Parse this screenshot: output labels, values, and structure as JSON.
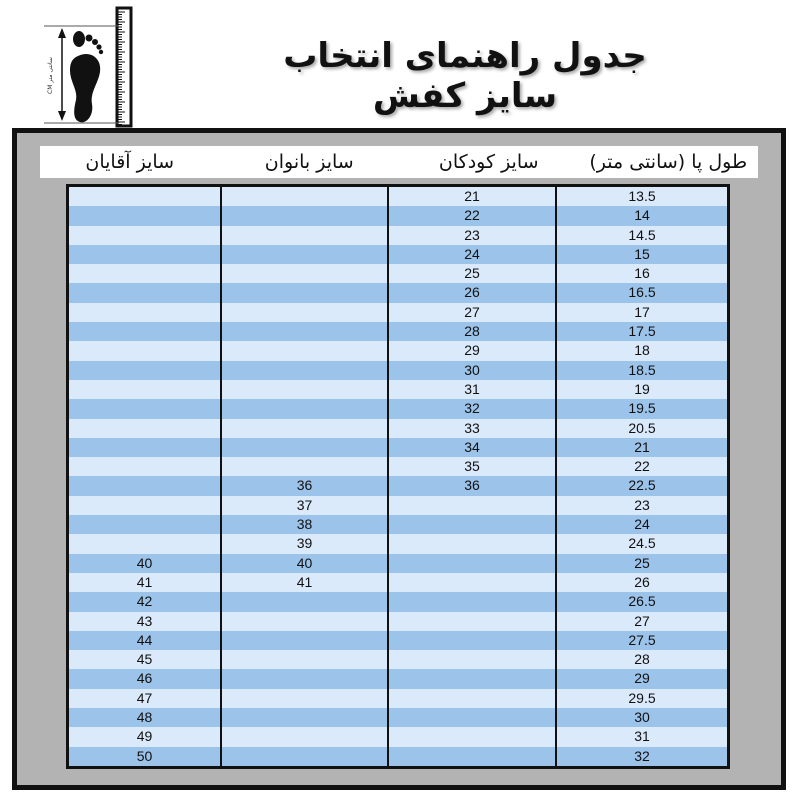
{
  "logo": {
    "icon": "foot-ruler-icon",
    "label": "CM سانتی متر"
  },
  "title": "جدول راهنمای انتخاب سایز کفش",
  "colors": {
    "row_light": "#dbeafb",
    "row_dark": "#9cc3ea",
    "frame": "#b3b3b3",
    "border": "#111111"
  },
  "table": {
    "headers": [
      "سایز آقایان",
      "سایز بانوان",
      "سایز کودکان",
      "طول پا (سانتی متر)"
    ],
    "rows": [
      [
        "",
        "",
        "21",
        "13.5"
      ],
      [
        "",
        "",
        "22",
        "14"
      ],
      [
        "",
        "",
        "23",
        "14.5"
      ],
      [
        "",
        "",
        "24",
        "15"
      ],
      [
        "",
        "",
        "25",
        "16"
      ],
      [
        "",
        "",
        "26",
        "16.5"
      ],
      [
        "",
        "",
        "27",
        "17"
      ],
      [
        "",
        "",
        "28",
        "17.5"
      ],
      [
        "",
        "",
        "29",
        "18"
      ],
      [
        "",
        "",
        "30",
        "18.5"
      ],
      [
        "",
        "",
        "31",
        "19"
      ],
      [
        "",
        "",
        "32",
        "19.5"
      ],
      [
        "",
        "",
        "33",
        "20.5"
      ],
      [
        "",
        "",
        "34",
        "21"
      ],
      [
        "",
        "",
        "35",
        "22"
      ],
      [
        "",
        "36",
        "36",
        "22.5"
      ],
      [
        "",
        "37",
        "",
        "23"
      ],
      [
        "",
        "38",
        "",
        "24"
      ],
      [
        "",
        "39",
        "",
        "24.5"
      ],
      [
        "40",
        "40",
        "",
        "25"
      ],
      [
        "41",
        "41",
        "",
        "26"
      ],
      [
        "42",
        "",
        "",
        "26.5"
      ],
      [
        "43",
        "",
        "",
        "27"
      ],
      [
        "44",
        "",
        "",
        "27.5"
      ],
      [
        "45",
        "",
        "",
        "28"
      ],
      [
        "46",
        "",
        "",
        "29"
      ],
      [
        "47",
        "",
        "",
        "29.5"
      ],
      [
        "48",
        "",
        "",
        "30"
      ],
      [
        "49",
        "",
        "",
        "31"
      ],
      [
        "50",
        "",
        "",
        "32"
      ]
    ]
  }
}
